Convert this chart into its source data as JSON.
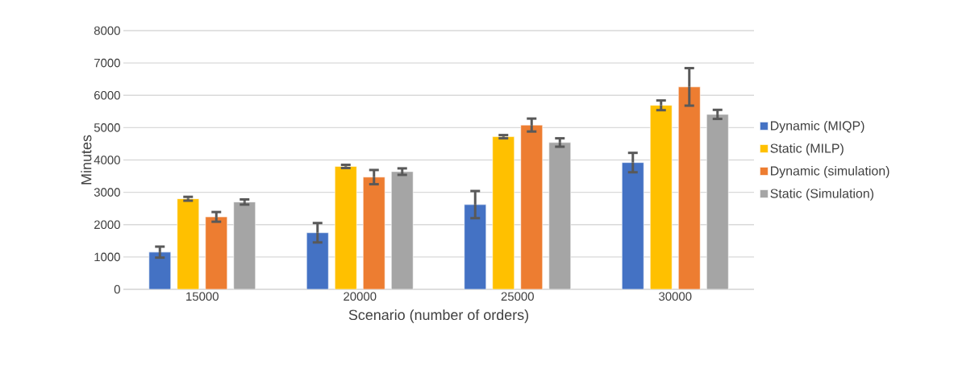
{
  "chart_data": {
    "type": "bar",
    "xlabel": "Scenario (number of orders)",
    "ylabel": "Minutes",
    "categories": [
      "15000",
      "20000",
      "25000",
      "30000"
    ],
    "series": [
      {
        "name": "Dynamic (MIQP)",
        "color": "#4472c4",
        "values": [
          1150,
          1750,
          2620,
          3920
        ],
        "errors": [
          170,
          300,
          420,
          300
        ]
      },
      {
        "name": "Static (MILP)",
        "color": "#ffc000",
        "values": [
          2800,
          3800,
          4720,
          5690
        ],
        "errors": [
          60,
          50,
          50,
          150
        ]
      },
      {
        "name": "Dynamic (simulation)",
        "color": "#ed7d31",
        "values": [
          2240,
          3470,
          5080,
          6260
        ],
        "errors": [
          150,
          220,
          200,
          580
        ]
      },
      {
        "name": "Static (Simulation)",
        "color": "#a5a5a5",
        "values": [
          2700,
          3640,
          4540,
          5410
        ],
        "errors": [
          80,
          100,
          130,
          140
        ]
      }
    ],
    "ylim": [
      0,
      8000
    ],
    "yticks": [
      0,
      1000,
      2000,
      3000,
      4000,
      5000,
      6000,
      7000,
      8000
    ],
    "grid": "y",
    "legend": "right"
  }
}
